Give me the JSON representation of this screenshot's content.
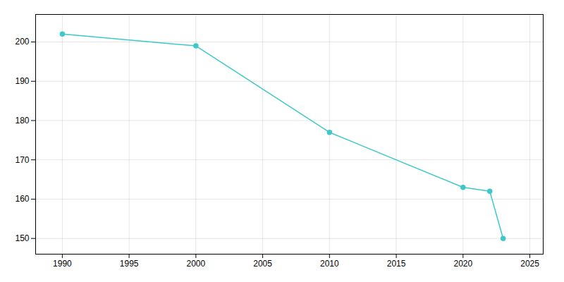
{
  "chart_data": {
    "type": "line",
    "x": [
      1990,
      2000,
      2010,
      2020,
      2022,
      2023
    ],
    "values": [
      202,
      199,
      177,
      163,
      162,
      150
    ],
    "color": "#3ec8c8",
    "marker": "circle",
    "xlim": [
      1988,
      2026
    ],
    "ylim": [
      146,
      207
    ],
    "xticks": [
      1990,
      1995,
      2000,
      2005,
      2010,
      2015,
      2020,
      2025
    ],
    "yticks": [
      150,
      160,
      170,
      180,
      190,
      200
    ],
    "grid": true
  }
}
